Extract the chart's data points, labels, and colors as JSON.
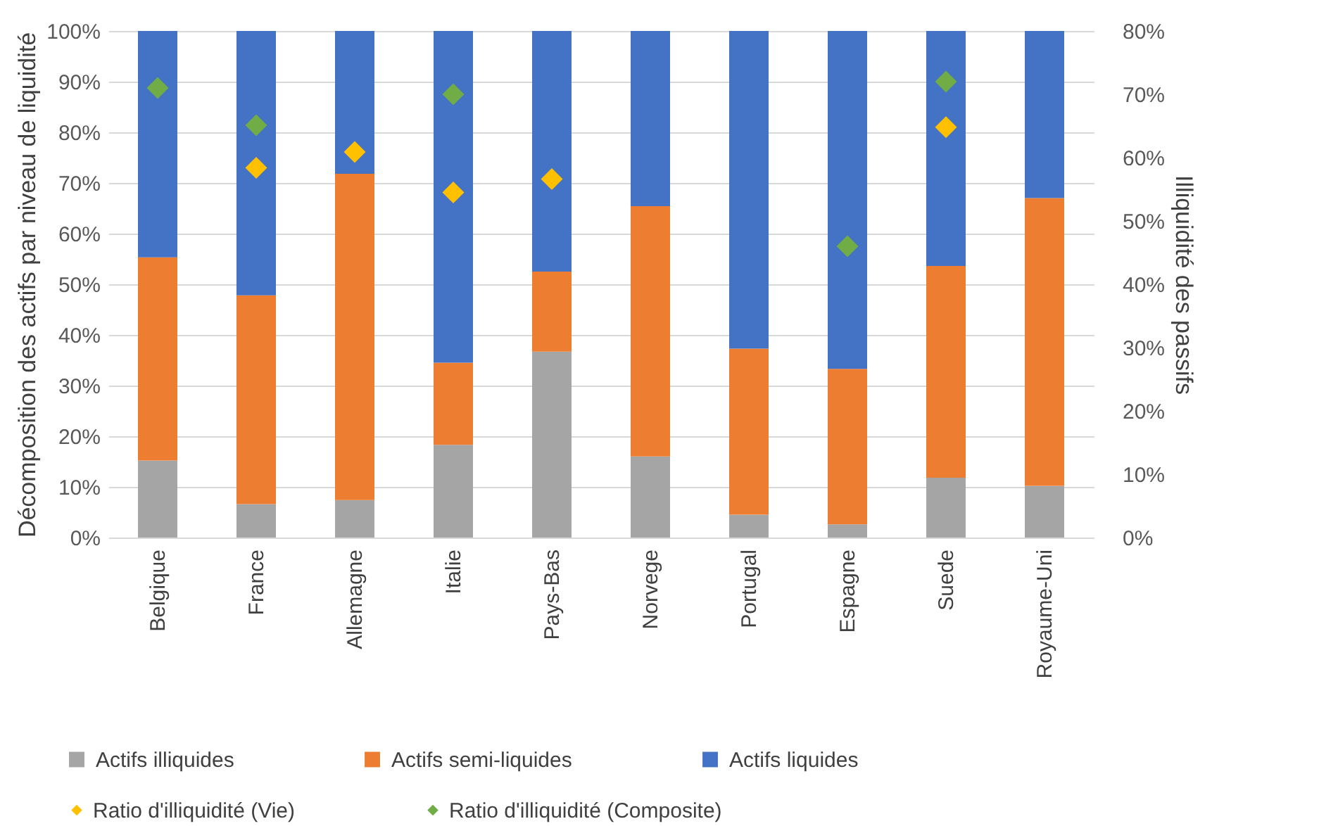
{
  "chart_data": {
    "type": "bar",
    "stacked": true,
    "ylabel": "Décomposition des actifs par niveau de liquidité",
    "y2label": "Illiquidité des passifs",
    "categories": [
      "Belgique",
      "France",
      "Allemagne",
      "Italie",
      "Pays-Bas",
      "Norvege",
      "Portugal",
      "Espagne",
      "Suede",
      "Royaume-Uni"
    ],
    "series": [
      {
        "name": "Actifs illiquides",
        "type": "bar",
        "color": "#a5a5a5",
        "values": [
          15.2,
          6.6,
          7.4,
          18.3,
          36.7,
          16.0,
          4.5,
          2.6,
          11.8,
          10.2
        ]
      },
      {
        "name": "Actifs semi-liquides",
        "type": "bar",
        "color": "#ed7d31",
        "values": [
          40.1,
          41.2,
          64.4,
          16.2,
          15.8,
          49.4,
          32.8,
          30.7,
          41.8,
          56.8
        ]
      },
      {
        "name": "Actifs liquides",
        "type": "bar",
        "color": "#4472c4",
        "values": [
          44.7,
          52.2,
          28.2,
          65.5,
          47.5,
          34.6,
          62.7,
          66.7,
          46.4,
          33.0
        ]
      },
      {
        "name": "Ratio d'illiquidité (Vie)",
        "type": "scatter",
        "axis": "y2",
        "color": "#ffc000",
        "values": [
          null,
          58.4,
          60.9,
          54.5,
          56.6,
          null,
          null,
          null,
          64.8,
          null
        ]
      },
      {
        "name": "Ratio d'illiquidité (Composite)",
        "type": "scatter",
        "axis": "y2",
        "color": "#70ad47",
        "values": [
          71.0,
          65.1,
          null,
          70.0,
          null,
          null,
          null,
          46.0,
          72.0,
          null
        ]
      }
    ],
    "ylim": [
      0,
      100
    ],
    "yticks": [
      {
        "value": 0,
        "label": "0%"
      },
      {
        "value": 10,
        "label": "10%"
      },
      {
        "value": 20,
        "label": "20%"
      },
      {
        "value": 30,
        "label": "30%"
      },
      {
        "value": 40,
        "label": "40%"
      },
      {
        "value": 50,
        "label": "50%"
      },
      {
        "value": 60,
        "label": "60%"
      },
      {
        "value": 70,
        "label": "70%"
      },
      {
        "value": 80,
        "label": "80%"
      },
      {
        "value": 90,
        "label": "90%"
      },
      {
        "value": 100,
        "label": "100%"
      }
    ],
    "y2lim": [
      0,
      80
    ],
    "y2ticks": [
      {
        "value": 0,
        "label": "0%"
      },
      {
        "value": 10,
        "label": "10%"
      },
      {
        "value": 20,
        "label": "20%"
      },
      {
        "value": 30,
        "label": "30%"
      },
      {
        "value": 40,
        "label": "40%"
      },
      {
        "value": 50,
        "label": "50%"
      },
      {
        "value": 60,
        "label": "60%"
      },
      {
        "value": 70,
        "label": "70%"
      },
      {
        "value": 80,
        "label": "80%"
      }
    ],
    "grid": "y",
    "legend": "bottom",
    "marker": "diamond"
  }
}
